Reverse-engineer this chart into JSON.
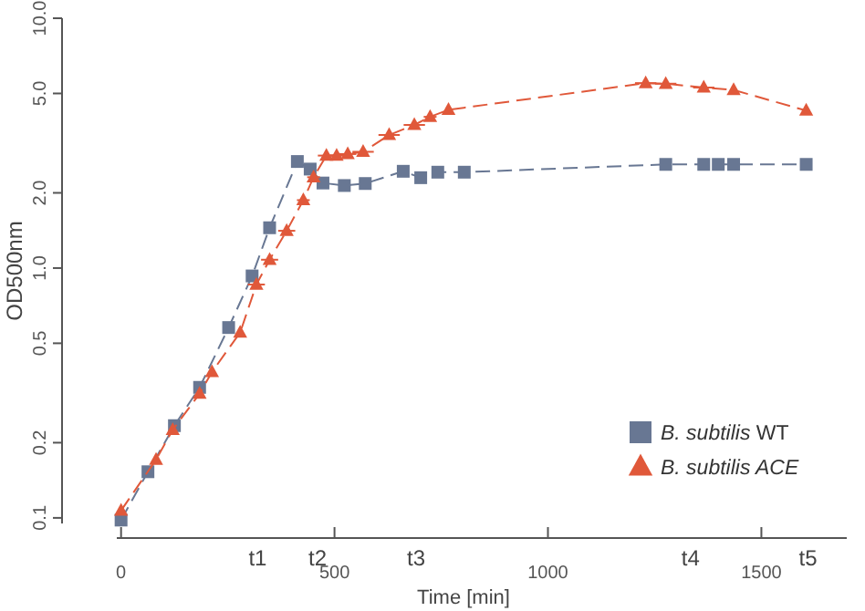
{
  "chart_data": {
    "type": "line",
    "xlabel": "Time [min]",
    "ylabel": "OD500nm",
    "log": "y",
    "xlim": [
      -10,
      1700
    ],
    "ylim": [
      0.095,
      10
    ],
    "xticks": [
      0,
      500,
      1000,
      1500
    ],
    "annotations": [
      "t1",
      "t2",
      "t3",
      "t4",
      "t5"
    ],
    "yticks": [
      0.1,
      0.2,
      0.5,
      {
        "value": 1,
        "label": "1.0"
      },
      {
        "value": 2,
        "label": "2.0"
      },
      {
        "value": 5,
        "label": "5.0"
      },
      {
        "value": 10,
        "label": "10.0"
      }
    ],
    "legend": "bottom right",
    "line_style": "dashed",
    "grid": false,
    "series": [
      {
        "name": "B. subtilis WT",
        "color": "#687793",
        "marker": "square",
        "x": [
          0,
          63,
          125,
          184,
          252,
          307,
          348,
          413,
          443,
          473,
          523,
          572,
          661,
          702,
          742,
          804,
          1276,
          1365,
          1399,
          1435,
          1605
        ],
        "values": [
          0.098,
          0.153,
          0.234,
          0.333,
          0.578,
          0.93,
          1.45,
          2.67,
          2.49,
          2.19,
          2.14,
          2.18,
          2.44,
          2.3,
          2.42,
          2.42,
          2.6,
          2.6,
          2.6,
          2.6,
          2.6
        ]
      },
      {
        "name": "B. subtilis ACE",
        "color": "#e0583a",
        "marker": "triangle",
        "x": [
          0,
          82,
          121,
          184,
          213,
          279,
          317,
          348,
          388,
          427,
          451,
          481,
          505,
          531,
          567,
          628,
          687,
          724,
          767,
          1229,
          1276,
          1365,
          1435,
          1605
        ],
        "values": [
          0.107,
          0.171,
          0.225,
          0.314,
          0.384,
          0.552,
          0.859,
          1.08,
          1.41,
          1.87,
          2.31,
          2.82,
          2.82,
          2.86,
          2.92,
          3.41,
          3.74,
          4.03,
          4.3,
          5.5,
          5.47,
          5.28,
          5.16,
          4.27
        ],
        "xerrors": [
          null,
          null,
          null,
          null,
          null,
          null,
          20,
          20,
          20,
          15,
          15,
          20,
          20,
          20,
          25,
          25,
          25,
          15,
          null,
          25,
          25,
          25,
          null,
          null
        ]
      }
    ]
  }
}
